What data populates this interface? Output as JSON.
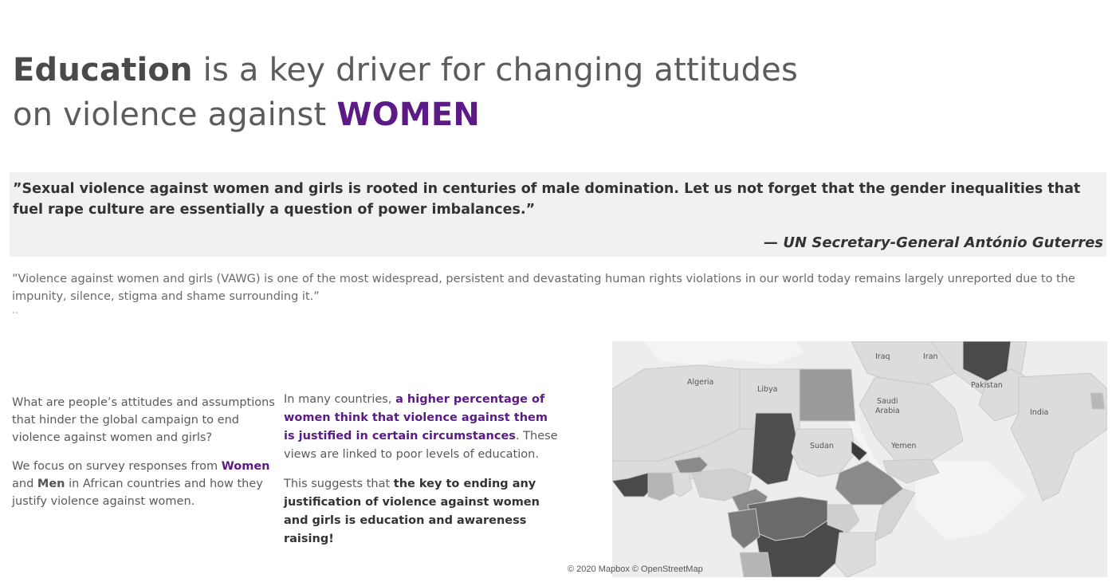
{
  "title": {
    "word_education": "Education",
    "rest_line1": " is a key driver for changing attitudes",
    "line2": "on violence against ",
    "word_women": "WOMEN"
  },
  "quote": {
    "text": "”Sexual violence against women and girls is rooted in centuries of male domination. Let us not forget that the gender inequalities that fuel rape culture are essentially a question of power imbalances.”",
    "author": "— UN Secretary-General António Guterres"
  },
  "sub_quote": "”Violence against women and girls (VAWG) is one of the most widespread, persistent and devastating human rights violations in our world today remains largely unreported due to the impunity, silence, stigma and shame surrounding it.”",
  "dots": "..",
  "left_column": {
    "p1": "What are people’s attitudes and assumptions that hinder the global campaign to end violence against women and girls?",
    "p2_a": "We focus on survey responses from ",
    "p2_women": "Women",
    "p2_b": " and ",
    "p2_men": "Men",
    "p2_c": " in African countries and how they justify violence against women."
  },
  "middle_column": {
    "p1_a": "In many countries, ",
    "p1_bold": "a higher percentage of women think that violence against them is justified in certain circumstances",
    "p1_b": ". These views are linked to poor levels of education.",
    "p2_a": "This suggests that ",
    "p2_bold": "the key to ending any justification of violence against women and girls is education and awareness raising!"
  },
  "map": {
    "labels": {
      "algeria": "Algeria",
      "libya": "Libya",
      "iraq": "Iraq",
      "iran": "Iran",
      "pakistan": "Pakistan",
      "saudi": "Saudi",
      "arabia": "Arabia",
      "sudan": "Sudan",
      "yemen": "Yemen",
      "india": "India"
    },
    "colors": {
      "background": "#e9e9e9",
      "darkest": "#4a4a4a",
      "dark": "#5e5e5e",
      "medium": "#8a8a8a",
      "light": "#b5b5b5",
      "lightest": "#d8d8d8"
    },
    "attribution": "© 2020 Mapbox © OpenStreetMap"
  }
}
